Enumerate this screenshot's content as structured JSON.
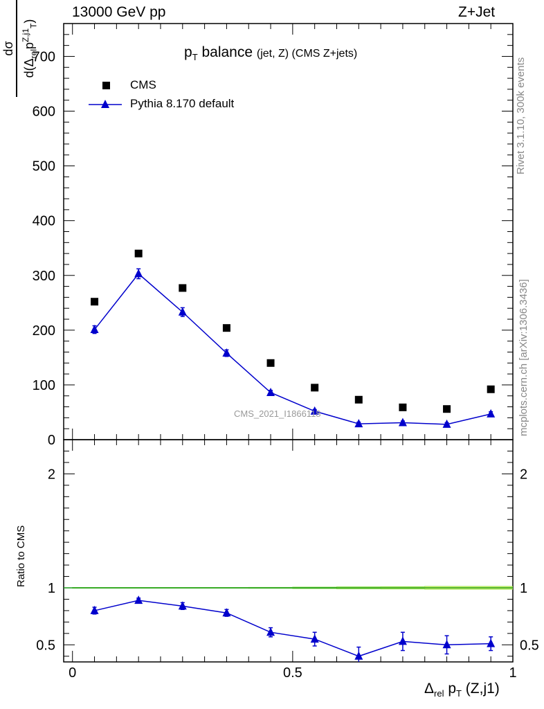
{
  "header": {
    "energy_label": "13000 GeV pp",
    "process_label": "Z+Jet"
  },
  "title": {
    "main": "p",
    "main_sub": "T",
    "main_rest": " balance",
    "small": "(jet, Z) (CMS Z+jets)"
  },
  "side_labels": {
    "rivet": "Rivet 3.1.10,  300k events",
    "mcplots": "mcplots.cern.ch [arXiv:1306.3436]"
  },
  "watermark": "CMS_2021_I1866118",
  "y_axis_label": {
    "numerator": "dσ",
    "denominator_prefix": "d(Δ",
    "denominator_sub": "rel",
    "denominator_p": "p",
    "denominator_sup": "Z,j1",
    "denominator_sub2": "T",
    "denominator_close": ")"
  },
  "ratio_axis_label": "Ratio to CMS",
  "x_axis_label": {
    "delta": "Δ",
    "sub": "rel",
    "p": " p",
    "sub2": "T",
    "rest": " (Z,j1)"
  },
  "legend": [
    {
      "name": "CMS",
      "marker": "square",
      "color": "#000000"
    },
    {
      "name": "Pythia 8.170 default",
      "marker": "triangle",
      "color": "#0000cc"
    }
  ],
  "colors": {
    "data": "#000000",
    "mc": "#0000cc",
    "band": "#ffff80",
    "band_edge": "#88dd44",
    "reference_line": "#1a9a1a"
  },
  "chart_data": [
    {
      "type": "scatter",
      "panel": "main",
      "xlim": [
        -0.02,
        1.0
      ],
      "ylim": [
        0,
        760
      ],
      "yticks": [
        0,
        100,
        200,
        300,
        400,
        500,
        600,
        700
      ],
      "ytick_labels": [
        "0",
        "100",
        "200",
        "300",
        "400",
        "500",
        "600",
        "700"
      ],
      "series": [
        {
          "name": "CMS",
          "x": [
            0.05,
            0.15,
            0.25,
            0.35,
            0.45,
            0.55,
            0.65,
            0.75,
            0.85,
            0.95
          ],
          "y": [
            252,
            340,
            277,
            204,
            140,
            95,
            73,
            59,
            56,
            92
          ]
        },
        {
          "name": "Pythia 8.170 default",
          "x": [
            0.05,
            0.15,
            0.25,
            0.35,
            0.45,
            0.55,
            0.65,
            0.75,
            0.85,
            0.95
          ],
          "y": [
            201,
            303,
            233,
            158,
            86,
            52,
            29,
            31,
            28,
            47
          ],
          "yerr": [
            7,
            9,
            8,
            6,
            4,
            3,
            3,
            3,
            3,
            4
          ]
        }
      ]
    },
    {
      "type": "line",
      "panel": "ratio",
      "xlim": [
        -0.02,
        1.0
      ],
      "ylim": [
        0.35,
        2.3
      ],
      "yticks": [
        0.5,
        1,
        2
      ],
      "ytick_labels": [
        "0.5",
        "1",
        "2"
      ],
      "xticks": [
        0,
        0.5,
        1
      ],
      "xtick_labels": [
        "0",
        "0.5",
        "1"
      ],
      "series": [
        {
          "name": "Pythia 8.170 default",
          "x": [
            0.05,
            0.15,
            0.25,
            0.35,
            0.45,
            0.55,
            0.65,
            0.75,
            0.85,
            0.95
          ],
          "y": [
            0.8,
            0.89,
            0.84,
            0.78,
            0.61,
            0.55,
            0.4,
            0.53,
            0.5,
            0.51
          ],
          "yerr": [
            0.03,
            0.02,
            0.03,
            0.03,
            0.04,
            0.06,
            0.08,
            0.08,
            0.08,
            0.06
          ]
        }
      ],
      "reference": 1
    }
  ]
}
